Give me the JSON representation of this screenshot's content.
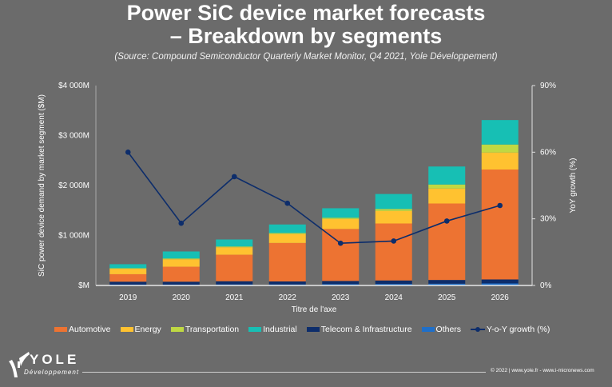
{
  "header": {
    "title_line1": "Power SiC device market forecasts",
    "title_line2": "– Breakdown by segments",
    "subtitle": "(Source: Compound Semiconductor Quarterly Market Monitor, Q4 2021, Yole Développement)"
  },
  "chart_data": {
    "type": "bar",
    "stacked": true,
    "title": "Power SiC device market forecasts – Breakdown by segments",
    "subtitle": "(Source: Compound Semiconductor Quarterly Market Monitor, Q4 2021, Yole Développement)",
    "xlabel": "Titre de l'axe",
    "ylabel": "SiC power device demand by market segment ($M)",
    "y2label": "YoY growth (%)",
    "categories": [
      "2019",
      "2020",
      "2021",
      "2022",
      "2023",
      "2024",
      "2025",
      "2026"
    ],
    "ylim": [
      0,
      4000
    ],
    "yticks": [
      0,
      1000,
      2000,
      3000,
      4000
    ],
    "ytick_labels": [
      "$M",
      "$1 000M",
      "$2 000M",
      "$3 000M",
      "$4 000M"
    ],
    "y2lim": [
      0,
      90
    ],
    "y2ticks": [
      0,
      30,
      60,
      90
    ],
    "y2tick_labels": [
      "0%",
      "30%",
      "60%",
      "90%"
    ],
    "grid": false,
    "legend_position": "bottom",
    "series": [
      {
        "name": "Others",
        "color": "#1f6fc9",
        "values": [
          15,
          15,
          20,
          20,
          25,
          30,
          35,
          40
        ]
      },
      {
        "name": "Telecom & Infrastructure",
        "color": "#0d2d6b",
        "values": [
          60,
          60,
          65,
          60,
          65,
          70,
          75,
          80
        ]
      },
      {
        "name": "Automotive",
        "color": "#ed7332",
        "values": [
          150,
          300,
          530,
          770,
          1040,
          1140,
          1530,
          2200
        ]
      },
      {
        "name": "Energy",
        "color": "#ffc230",
        "values": [
          110,
          150,
          150,
          180,
          200,
          250,
          300,
          340
        ]
      },
      {
        "name": "Transportation",
        "color": "#bfd843",
        "values": [
          10,
          15,
          15,
          20,
          25,
          40,
          80,
          160
        ]
      },
      {
        "name": "Industrial",
        "color": "#17bfb4",
        "values": [
          80,
          140,
          140,
          170,
          190,
          300,
          360,
          490
        ]
      },
      {
        "name": "Y-o-Y growth (%)",
        "color": "#0d2d6b",
        "type": "line",
        "axis": "right",
        "values": [
          60,
          28,
          49,
          37,
          19,
          20,
          29,
          36
        ]
      }
    ],
    "legend": [
      "Automotive",
      "Energy",
      "Transportation",
      "Industrial",
      "Telecom & Infrastructure",
      "Others",
      "Y-o-Y growth (%)"
    ]
  },
  "footer": {
    "logo_name": "YOLE",
    "logo_sub": "Développement",
    "copyright": "© 2022 | www.yole.fr - www.i-micronews.com"
  }
}
